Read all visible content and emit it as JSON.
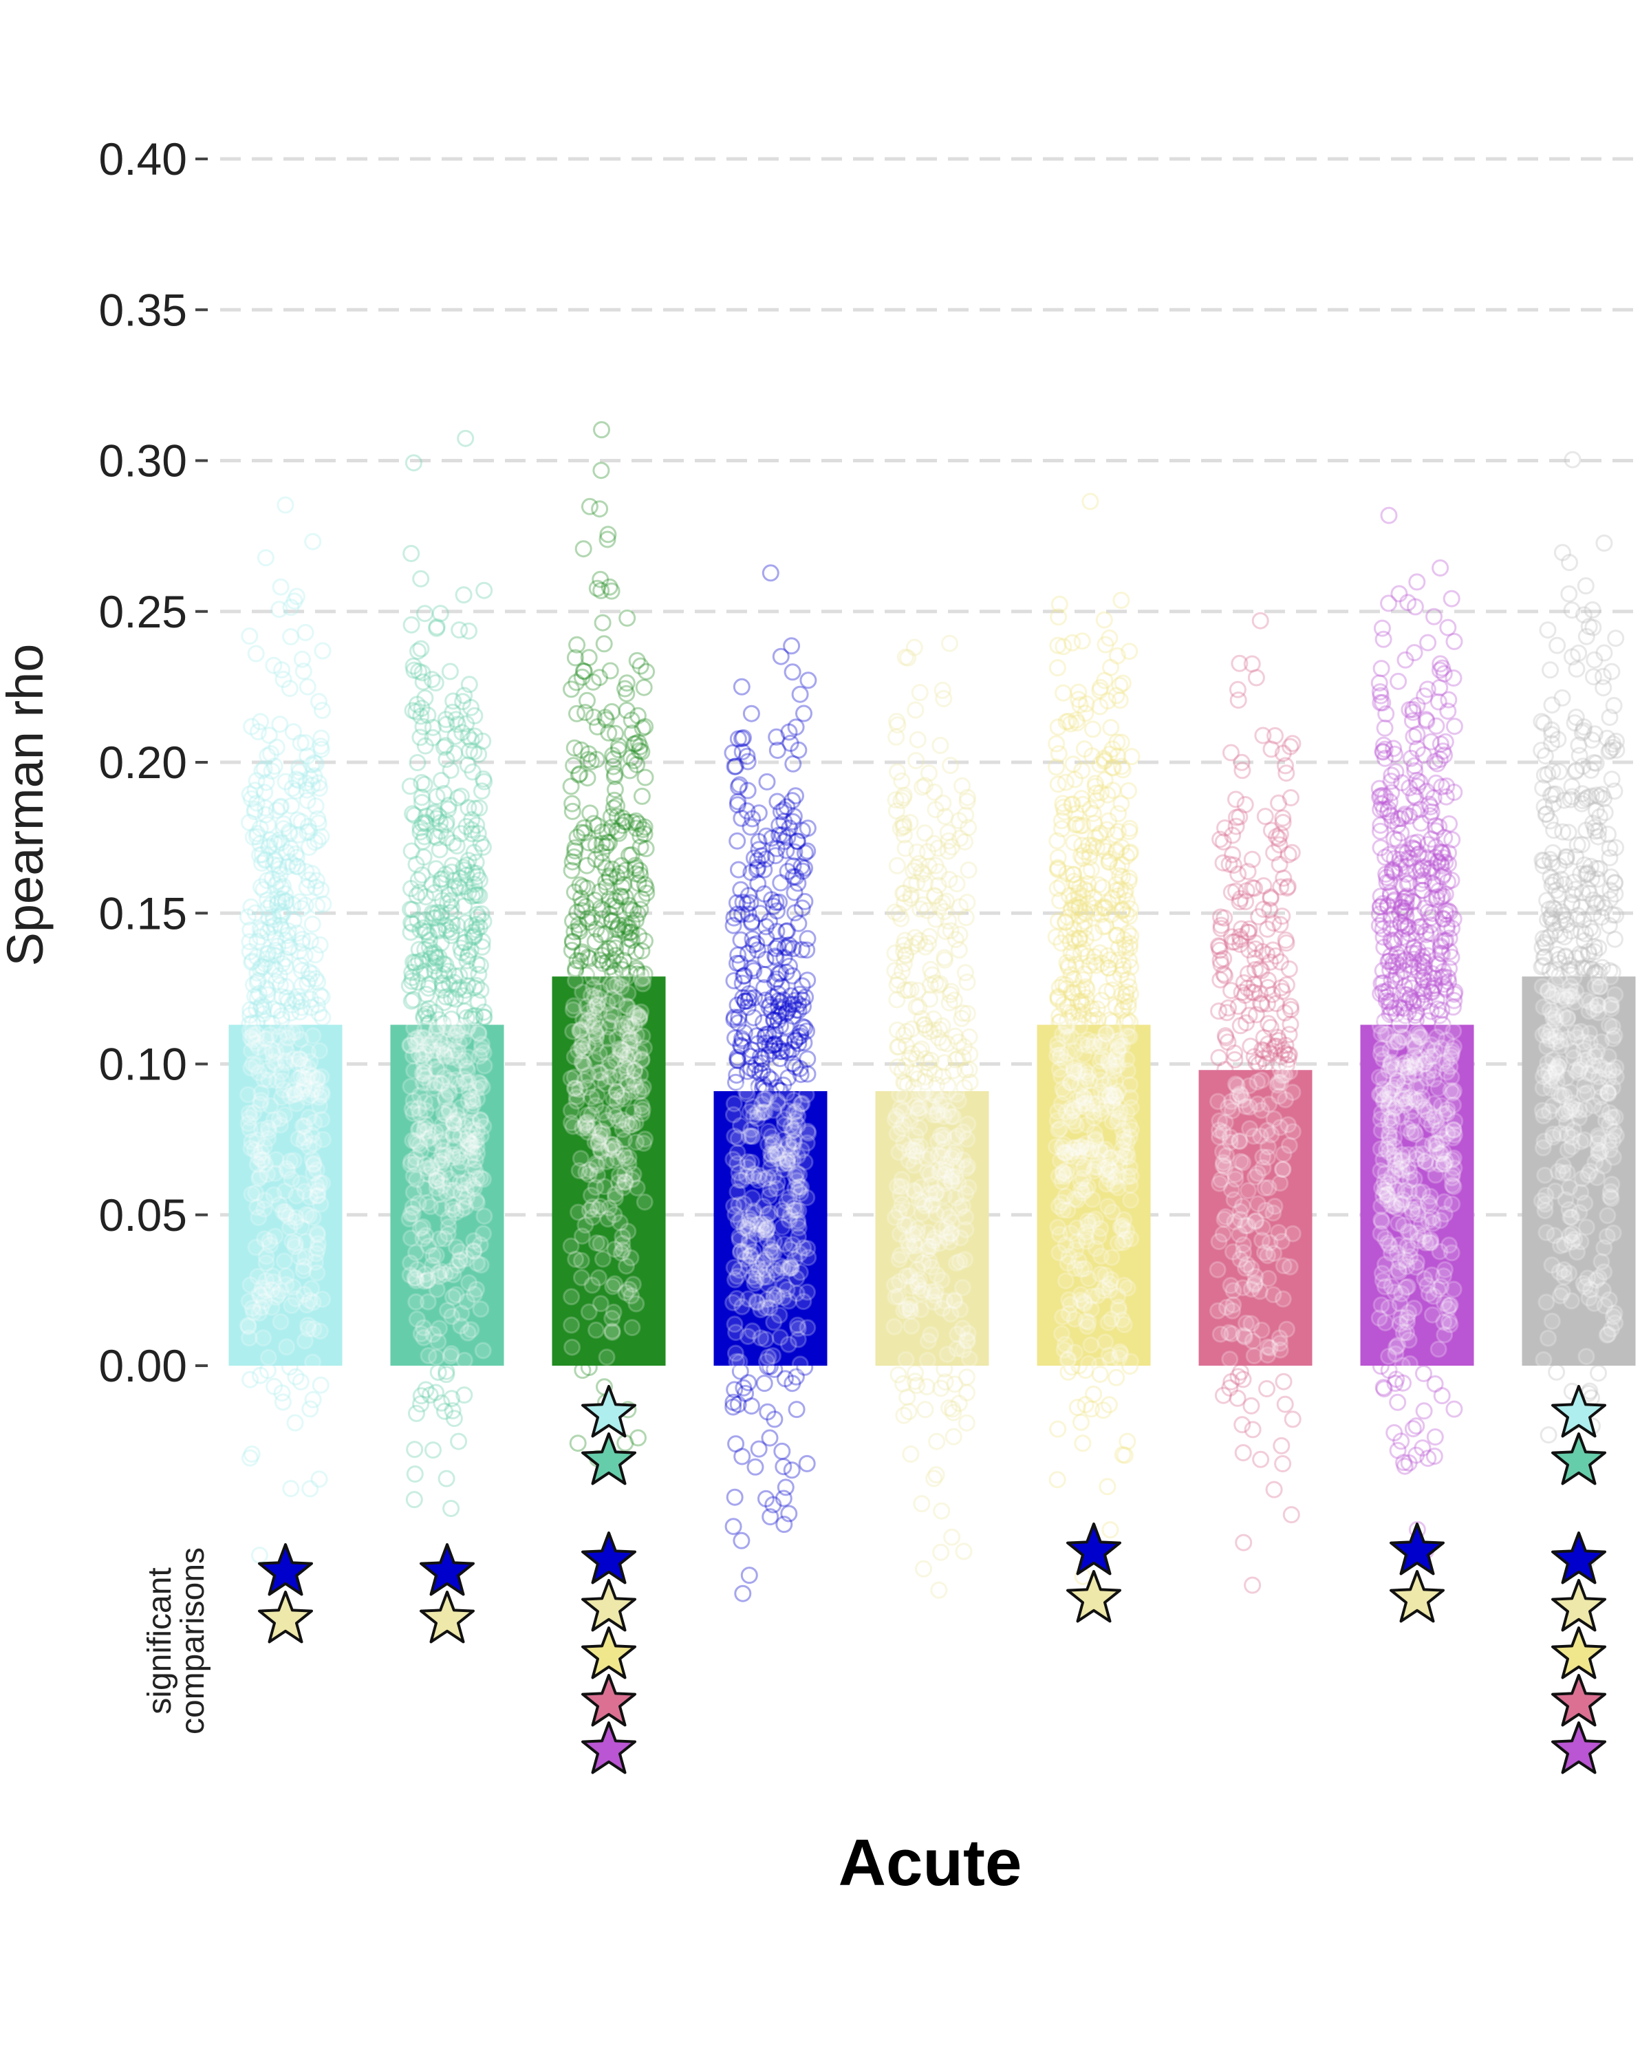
{
  "chart_data": {
    "type": "bar",
    "title": "Acute",
    "ylabel": "Spearman rho",
    "ylim": [
      0,
      0.42
    ],
    "yticks": [
      "0.00",
      "0.05",
      "0.10",
      "0.15",
      "0.20",
      "0.25",
      "0.30",
      "0.35",
      "0.40"
    ],
    "significance_label": [
      "significant",
      "comparisons"
    ],
    "grid": true,
    "legend": "none",
    "bars": [
      {
        "value": 0.113,
        "color": "#aeeeee",
        "stars": [
          [
            "#0000cd",
            "#eee8aa"
          ]
        ]
      },
      {
        "value": 0.113,
        "color": "#66cdaa",
        "stars": [
          [
            "#0000cd",
            "#eee8aa"
          ]
        ]
      },
      {
        "value": 0.129,
        "color": "#228b22",
        "stars": [
          [
            "#aeeeee",
            "#66cdaa"
          ],
          [
            "#0000cd",
            "#eee8aa",
            "#f0e68c",
            "#db7093",
            "#ba55d3"
          ]
        ]
      },
      {
        "value": 0.091,
        "color": "#0000cd",
        "stars": []
      },
      {
        "value": 0.091,
        "color": "#eee8aa",
        "stars": []
      },
      {
        "value": 0.113,
        "color": "#f0e68c",
        "stars": [
          [
            "#0000cd",
            "#eee8aa"
          ]
        ]
      },
      {
        "value": 0.098,
        "color": "#db7093",
        "stars": []
      },
      {
        "value": 0.113,
        "color": "#ba55d3",
        "stars": [
          [
            "#0000cd",
            "#eee8aa"
          ]
        ]
      },
      {
        "value": 0.129,
        "color": "#bebebe",
        "stars": [
          [
            "#aeeeee",
            "#66cdaa"
          ],
          [
            "#0000cd",
            "#eee8aa",
            "#f0e68c",
            "#db7093",
            "#ba55d3"
          ]
        ]
      }
    ],
    "points_opacity": {
      "fill": 0.18,
      "stroke": 0.35
    }
  }
}
